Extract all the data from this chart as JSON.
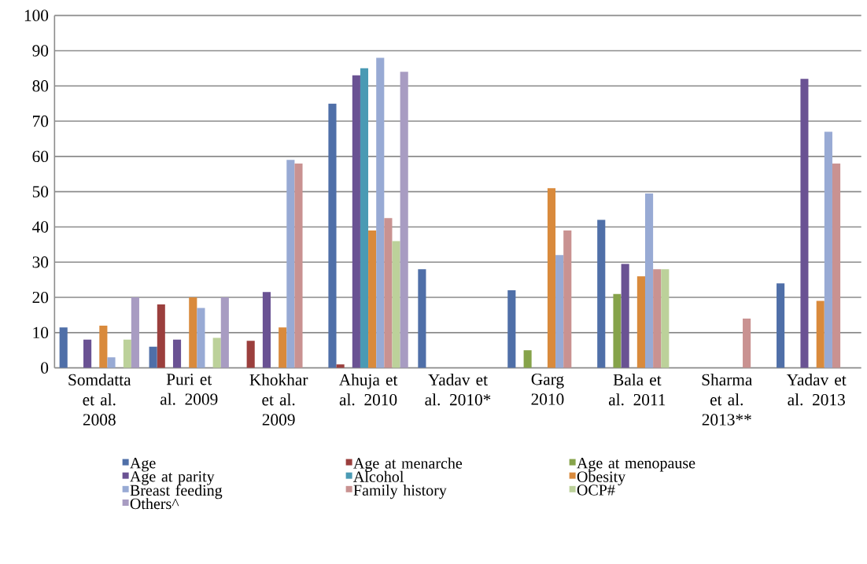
{
  "chart_data": {
    "type": "bar",
    "categories": [
      "Somdatta et al. 2008",
      "Puri et al. 2009",
      "Khokhar et al. 2009",
      "Ahuja et al. 2010",
      "Yadav et al. 2010*",
      "Garg 2010",
      "Bala et al. 2011",
      "Sharma et al. 2013**",
      "Yadav et al. 2013"
    ],
    "series": [
      {
        "name": "Age",
        "color": "#4f6fa8",
        "values": [
          11.5,
          6,
          null,
          75,
          28,
          22,
          42,
          null,
          24
        ]
      },
      {
        "name": "Age at menarche",
        "color": "#9b3f3d",
        "values": [
          null,
          18,
          7.7,
          1,
          null,
          null,
          null,
          null,
          null
        ]
      },
      {
        "name": "Age at menopause",
        "color": "#86a34a",
        "values": [
          null,
          null,
          null,
          null,
          null,
          5,
          21,
          null,
          null
        ]
      },
      {
        "name": "Age at parity",
        "color": "#6a5293",
        "values": [
          8,
          8,
          21.5,
          83,
          null,
          null,
          29.5,
          null,
          82
        ]
      },
      {
        "name": "Alcohol",
        "color": "#4a9ab4",
        "values": [
          null,
          null,
          null,
          85,
          null,
          null,
          null,
          null,
          null
        ]
      },
      {
        "name": "Obesity",
        "color": "#d98a3c",
        "values": [
          12,
          20,
          11.5,
          39,
          null,
          51,
          26,
          null,
          19
        ]
      },
      {
        "name": "Breast feeding",
        "color": "#98aad4",
        "values": [
          3,
          17,
          59,
          88,
          null,
          32,
          49.5,
          null,
          67
        ]
      },
      {
        "name": "Family history",
        "color": "#c99291",
        "values": [
          null,
          null,
          58,
          42.5,
          null,
          39,
          28,
          14,
          58
        ]
      },
      {
        "name": "OCP#",
        "color": "#bcd19a",
        "values": [
          8,
          8.5,
          null,
          36,
          null,
          null,
          28,
          null,
          null
        ]
      },
      {
        "name": "Others^",
        "color": "#a89cc2",
        "values": [
          20,
          20,
          null,
          84,
          null,
          null,
          null,
          null,
          null
        ]
      }
    ],
    "ylim": [
      0,
      100
    ],
    "yticks": [
      0,
      10,
      20,
      30,
      40,
      50,
      60,
      70,
      80,
      90,
      100
    ],
    "grid": "y",
    "legend": "bottom"
  }
}
